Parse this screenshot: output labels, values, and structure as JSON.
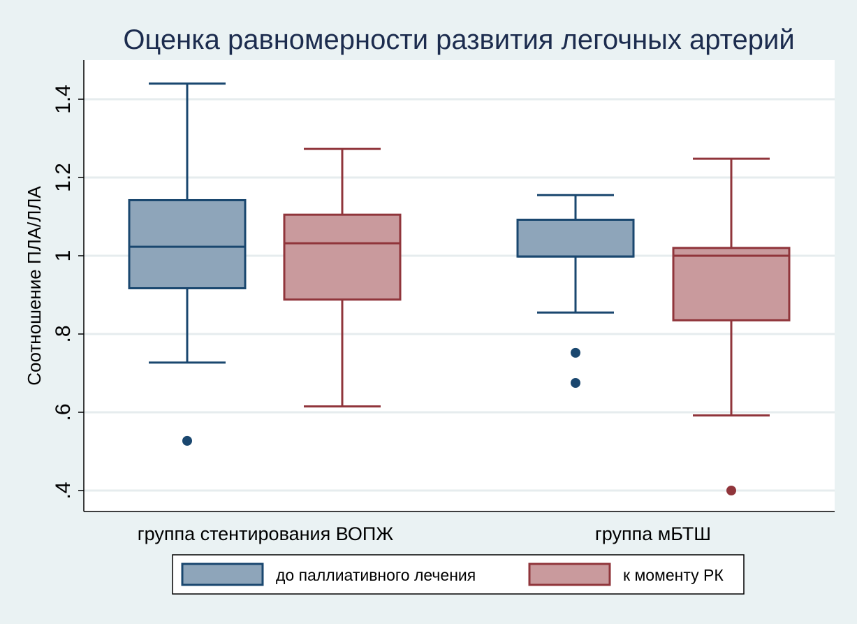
{
  "chart_data": {
    "type": "box",
    "title": "Оценка равномерности развития легочных артерий",
    "ylabel": "Соотношение ПЛА/ЛЛА",
    "xlabel": "",
    "ylim": [
      0.35,
      1.49
    ],
    "yticks": [
      0.4,
      0.6,
      0.8,
      1.0,
      1.2,
      1.4
    ],
    "ytick_labels": [
      ".4",
      ".6",
      ".8",
      "1",
      "1.2",
      "1.4"
    ],
    "grid": true,
    "legend_position": "bottom",
    "categories": [
      "группа стентирования ВОПЖ",
      "группа мБТШ"
    ],
    "series": [
      {
        "name": "до паллиативного лечения",
        "fill": "#8ea5ba",
        "stroke": "#1a476f",
        "boxes": [
          {
            "whisker_low": 0.727,
            "q1": 0.917,
            "median": 1.023,
            "q3": 1.142,
            "whisker_high": 1.44,
            "outliers": [
              0.527
            ]
          },
          {
            "whisker_low": 0.855,
            "q1": 0.998,
            "median": 0.998,
            "q3": 1.092,
            "whisker_high": 1.155,
            "outliers": [
              0.675,
              0.752
            ]
          }
        ]
      },
      {
        "name": "к моменту РК",
        "fill": "#c99a9d",
        "stroke": "#90353b",
        "boxes": [
          {
            "whisker_low": 0.615,
            "q1": 0.888,
            "median": 1.032,
            "q3": 1.105,
            "whisker_high": 1.273,
            "outliers": []
          },
          {
            "whisker_low": 0.592,
            "q1": 0.835,
            "median": 1.0,
            "q3": 1.02,
            "whisker_high": 1.248,
            "outliers": [
              0.4
            ]
          }
        ]
      }
    ]
  }
}
